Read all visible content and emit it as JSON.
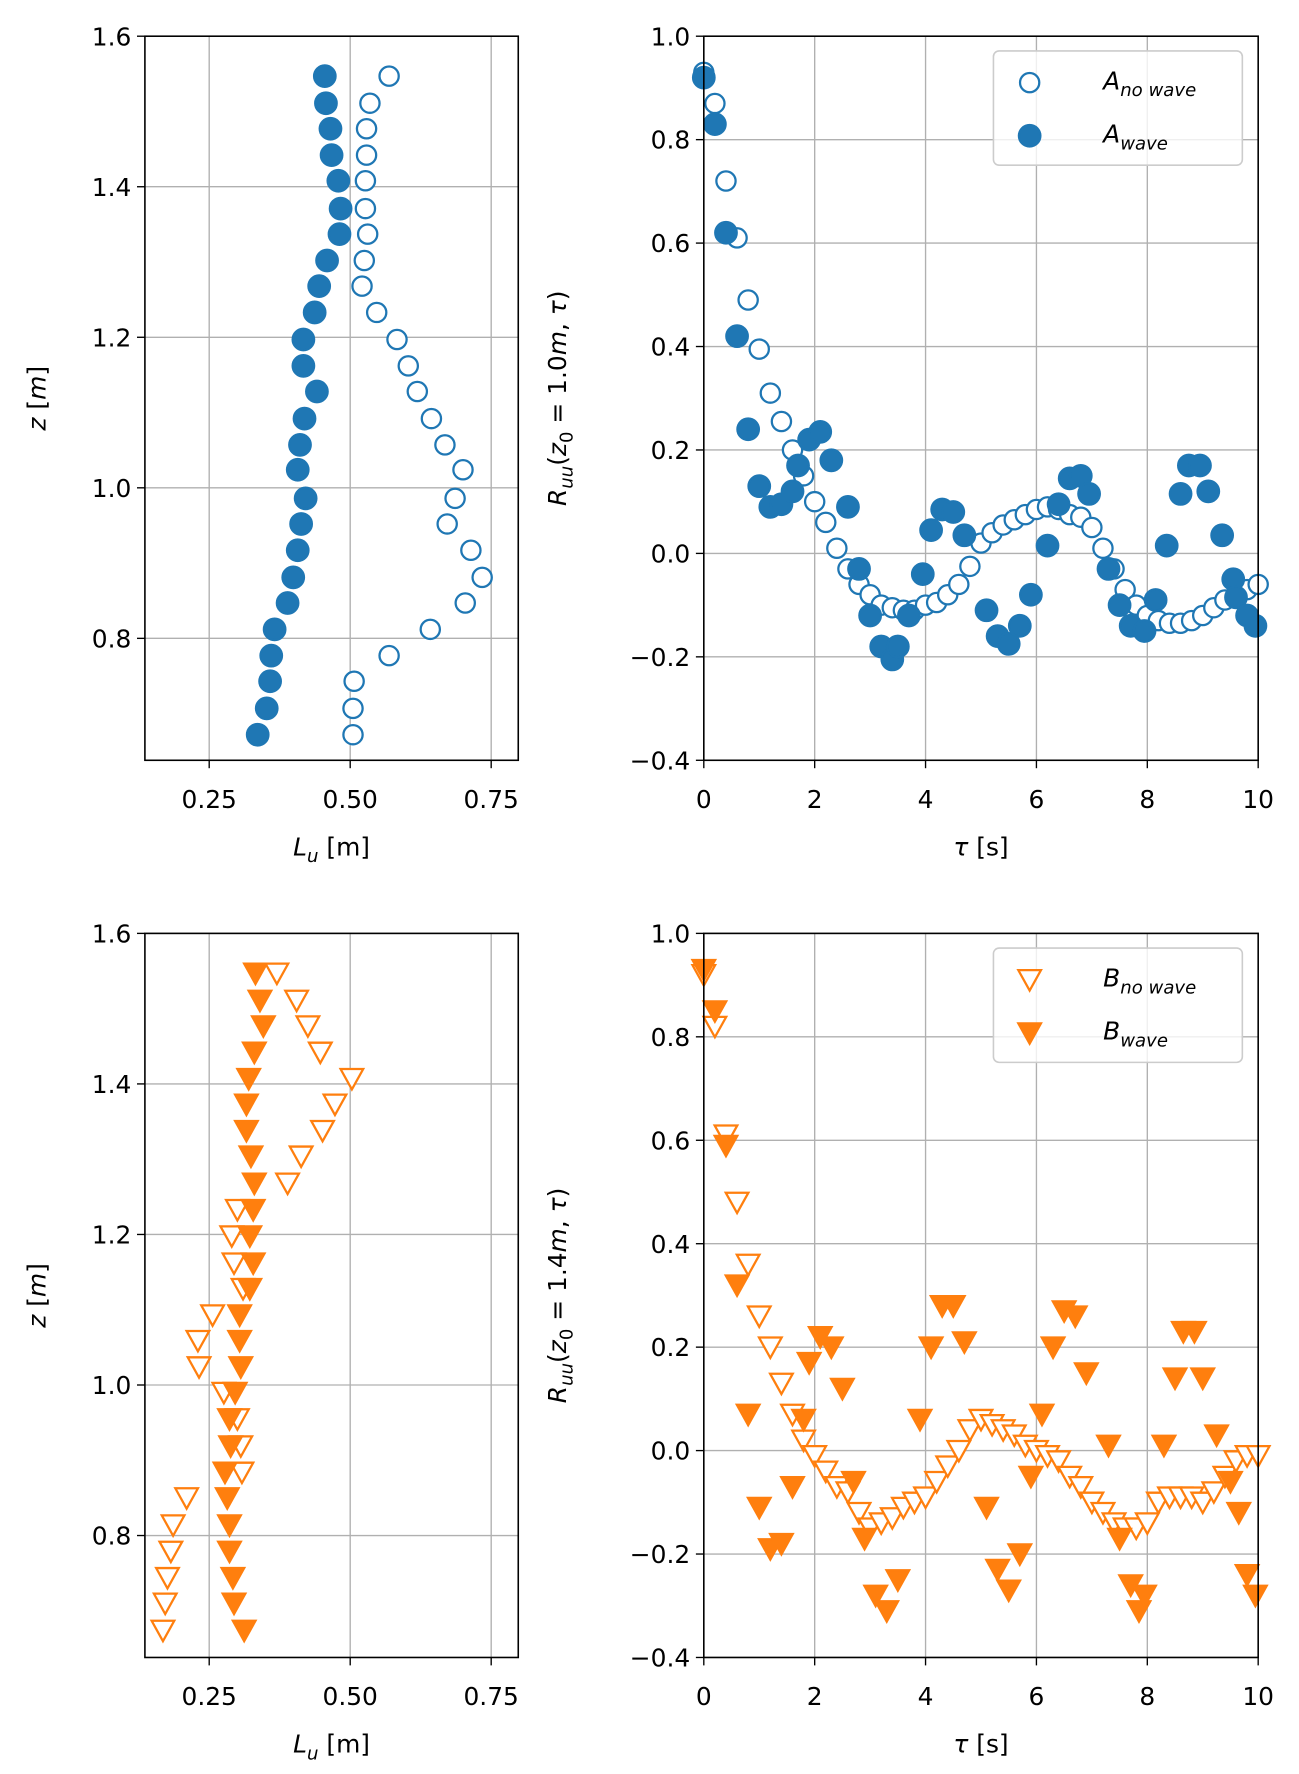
{
  "chart_data": [
    {
      "type": "scatter",
      "grid": true,
      "xlabel": [
        {
          "text": "L",
          "italic": true
        },
        {
          "text": "u",
          "italic": true,
          "sub": true
        },
        {
          "text": " [m]"
        }
      ],
      "ylabel": [
        {
          "text": "z",
          "italic": true
        },
        {
          "text": " ["
        },
        {
          "text": "m",
          "italic": true
        },
        {
          "text": "]"
        }
      ],
      "xlim": [
        0.136,
        0.798
      ],
      "ylim": [
        0.638,
        1.6
      ],
      "xticks": [
        {
          "value": 0.25,
          "label": "0.25"
        },
        {
          "value": 0.5,
          "label": "0.50"
        },
        {
          "value": 0.75,
          "label": "0.75"
        }
      ],
      "yticks": [
        0.8,
        {
          "value": 1.0,
          "label": "1.0"
        },
        1.2,
        1.4,
        1.6
      ],
      "series": [
        {
          "marker": "circle",
          "filled": false,
          "color": "#1f77b4",
          "x": [
            0.569,
            0.535,
            0.529,
            0.529,
            0.527,
            0.527,
            0.531,
            0.525,
            0.521,
            0.547,
            0.583,
            0.603,
            0.619,
            0.644,
            0.668,
            0.7,
            0.686,
            0.672,
            0.714,
            0.734,
            0.704,
            0.642,
            0.569,
            0.507,
            0.505,
            0.505
          ],
          "values": [
            1.547,
            1.511,
            1.477,
            1.442,
            1.408,
            1.371,
            1.337,
            1.302,
            1.268,
            1.233,
            1.197,
            1.162,
            1.128,
            1.092,
            1.057,
            1.024,
            0.986,
            0.952,
            0.917,
            0.881,
            0.847,
            0.812,
            0.777,
            0.743,
            0.707,
            0.672
          ]
        },
        {
          "marker": "circle",
          "filled": true,
          "color": "#1f77b4",
          "x": [
            0.455,
            0.457,
            0.465,
            0.467,
            0.479,
            0.483,
            0.481,
            0.459,
            0.445,
            0.437,
            0.417,
            0.417,
            0.441,
            0.419,
            0.411,
            0.407,
            0.421,
            0.413,
            0.407,
            0.399,
            0.389,
            0.366,
            0.36,
            0.358,
            0.352,
            0.336
          ],
          "values": [
            1.547,
            1.511,
            1.477,
            1.442,
            1.408,
            1.371,
            1.337,
            1.302,
            1.268,
            1.233,
            1.197,
            1.162,
            1.128,
            1.092,
            1.057,
            1.024,
            0.986,
            0.952,
            0.917,
            0.881,
            0.847,
            0.812,
            0.777,
            0.743,
            0.707,
            0.672
          ]
        }
      ]
    },
    {
      "type": "scatter",
      "grid": true,
      "legend": "upper right",
      "xlabel": [
        {
          "text": "τ",
          "italic": true
        },
        {
          "text": " [s]"
        }
      ],
      "ylabel": [
        {
          "text": "R",
          "italic": true
        },
        {
          "text": "uu",
          "italic": true,
          "sub": true
        },
        {
          "text": "("
        },
        {
          "text": "z",
          "italic": true
        },
        {
          "text": "0",
          "sub": true
        },
        {
          "text": " = 1.0"
        },
        {
          "text": "m",
          "italic": true
        },
        {
          "text": ", "
        },
        {
          "text": "τ",
          "italic": true
        },
        {
          "text": ")"
        }
      ],
      "xlim": [
        0,
        10
      ],
      "ylim": [
        -0.4,
        1.0
      ],
      "xticks": [
        0,
        2,
        4,
        6,
        8,
        10
      ],
      "yticks": [
        {
          "value": -0.4,
          "label": "−0.4"
        },
        {
          "value": -0.2,
          "label": "−0.2"
        },
        {
          "value": 0.0,
          "label": "0.0"
        },
        0.2,
        0.4,
        0.6,
        0.8,
        {
          "value": 1.0,
          "label": "1.0"
        }
      ],
      "series": [
        {
          "name": [
            {
              "text": "A",
              "italic": true
            },
            {
              "text": "no wave",
              "italic": true,
              "sub": true
            }
          ],
          "marker": "circle",
          "filled": false,
          "color": "#1f77b4",
          "x": [
            0,
            0.2,
            0.4,
            0.6,
            0.8,
            1.0,
            1.2,
            1.4,
            1.6,
            1.8,
            2.0,
            2.2,
            2.4,
            2.6,
            2.8,
            3.0,
            3.2,
            3.4,
            3.6,
            3.8,
            4.0,
            4.2,
            4.4,
            4.6,
            4.8,
            5.0,
            5.2,
            5.4,
            5.6,
            5.8,
            6.0,
            6.2,
            6.4,
            6.6,
            6.8,
            7.0,
            7.2,
            7.4,
            7.6,
            7.8,
            8.0,
            8.2,
            8.4,
            8.6,
            8.8,
            9.0,
            9.2,
            9.4,
            9.6,
            9.8,
            10.0
          ],
          "values": [
            0.93,
            0.87,
            0.72,
            0.61,
            0.49,
            0.395,
            0.31,
            0.255,
            0.2,
            0.15,
            0.1,
            0.06,
            0.01,
            -0.03,
            -0.06,
            -0.08,
            -0.1,
            -0.105,
            -0.11,
            -0.11,
            -0.1,
            -0.095,
            -0.08,
            -0.06,
            -0.025,
            0.02,
            0.04,
            0.055,
            0.065,
            0.075,
            0.085,
            0.09,
            0.085,
            0.075,
            0.07,
            0.05,
            0.01,
            -0.03,
            -0.07,
            -0.1,
            -0.12,
            -0.13,
            -0.135,
            -0.135,
            -0.13,
            -0.12,
            -0.105,
            -0.09,
            -0.08,
            -0.07,
            -0.06
          ]
        },
        {
          "name": [
            {
              "text": "A",
              "italic": true
            },
            {
              "text": "wave",
              "italic": true,
              "sub": true
            }
          ],
          "marker": "circle",
          "filled": true,
          "color": "#1f77b4",
          "x": [
            0,
            0.2,
            0.4,
            0.6,
            0.8,
            1.0,
            1.2,
            1.4,
            1.6,
            1.7,
            1.9,
            2.1,
            2.3,
            2.6,
            2.8,
            3.0,
            3.2,
            3.4,
            3.5,
            3.7,
            3.95,
            4.1,
            4.3,
            4.5,
            4.7,
            5.1,
            5.3,
            5.5,
            5.7,
            5.9,
            6.2,
            6.4,
            6.6,
            6.8,
            6.95,
            7.3,
            7.5,
            7.7,
            7.95,
            8.15,
            8.35,
            8.6,
            8.75,
            8.95,
            9.1,
            9.35,
            9.55,
            9.6,
            9.8,
            9.95
          ],
          "values": [
            0.92,
            0.83,
            0.62,
            0.42,
            0.24,
            0.13,
            0.09,
            0.095,
            0.12,
            0.17,
            0.22,
            0.235,
            0.18,
            0.09,
            -0.03,
            -0.12,
            -0.18,
            -0.205,
            -0.18,
            -0.12,
            -0.04,
            0.045,
            0.085,
            0.08,
            0.035,
            -0.11,
            -0.16,
            -0.175,
            -0.14,
            -0.08,
            0.015,
            0.095,
            0.145,
            0.15,
            0.115,
            -0.03,
            -0.1,
            -0.14,
            -0.15,
            -0.09,
            0.015,
            0.115,
            0.17,
            0.17,
            0.12,
            0.035,
            -0.05,
            -0.085,
            -0.12,
            -0.14
          ]
        }
      ]
    },
    {
      "type": "scatter",
      "grid": true,
      "xlabel": [
        {
          "text": "L",
          "italic": true
        },
        {
          "text": "u",
          "italic": true,
          "sub": true
        },
        {
          "text": " [m]"
        }
      ],
      "ylabel": [
        {
          "text": "z",
          "italic": true
        },
        {
          "text": " ["
        },
        {
          "text": "m",
          "italic": true
        },
        {
          "text": "]"
        }
      ],
      "xlim": [
        0.136,
        0.798
      ],
      "ylim": [
        0.638,
        1.6
      ],
      "xticks": [
        {
          "value": 0.25,
          "label": "0.25"
        },
        {
          "value": 0.5,
          "label": "0.50"
        },
        {
          "value": 0.75,
          "label": "0.75"
        }
      ],
      "yticks": [
        0.8,
        {
          "value": 1.0,
          "label": "1.0"
        },
        1.2,
        1.4,
        1.6
      ],
      "series": [
        {
          "marker": "triangle",
          "filled": false,
          "color": "#ff7f0e",
          "x": [
            0.37,
            0.405,
            0.425,
            0.447,
            0.503,
            0.473,
            0.451,
            0.413,
            0.389,
            0.3,
            0.29,
            0.294,
            0.31,
            0.256,
            0.23,
            0.232,
            0.276,
            0.3,
            0.306,
            0.308,
            0.21,
            0.186,
            0.182,
            0.176,
            0.172,
            0.168
          ],
          "values": [
            1.547,
            1.511,
            1.477,
            1.442,
            1.407,
            1.373,
            1.338,
            1.304,
            1.268,
            1.233,
            1.198,
            1.162,
            1.128,
            1.093,
            1.059,
            1.024,
            0.99,
            0.955,
            0.919,
            0.884,
            0.85,
            0.814,
            0.779,
            0.744,
            0.71,
            0.674
          ]
        },
        {
          "marker": "triangle",
          "filled": true,
          "color": "#ff7f0e",
          "x": [
            0.332,
            0.34,
            0.346,
            0.33,
            0.32,
            0.316,
            0.316,
            0.324,
            0.33,
            0.328,
            0.322,
            0.328,
            0.322,
            0.304,
            0.304,
            0.306,
            0.296,
            0.286,
            0.288,
            0.278,
            0.282,
            0.286,
            0.286,
            0.292,
            0.294,
            0.312
          ],
          "values": [
            1.547,
            1.511,
            1.477,
            1.442,
            1.407,
            1.373,
            1.338,
            1.304,
            1.268,
            1.233,
            1.198,
            1.162,
            1.128,
            1.093,
            1.059,
            1.024,
            0.99,
            0.955,
            0.919,
            0.884,
            0.85,
            0.814,
            0.779,
            0.744,
            0.71,
            0.674
          ]
        }
      ]
    },
    {
      "type": "scatter",
      "grid": true,
      "legend": "upper right",
      "xlabel": [
        {
          "text": "τ",
          "italic": true
        },
        {
          "text": " [s]"
        }
      ],
      "ylabel": [
        {
          "text": "R",
          "italic": true
        },
        {
          "text": "uu",
          "italic": true,
          "sub": true
        },
        {
          "text": "("
        },
        {
          "text": "z",
          "italic": true
        },
        {
          "text": "0",
          "sub": true
        },
        {
          "text": " = 1.4"
        },
        {
          "text": "m",
          "italic": true
        },
        {
          "text": ", "
        },
        {
          "text": "τ",
          "italic": true
        },
        {
          "text": ")"
        }
      ],
      "xlim": [
        0,
        10
      ],
      "ylim": [
        -0.4,
        1.0
      ],
      "xticks": [
        0,
        2,
        4,
        6,
        8,
        10
      ],
      "yticks": [
        {
          "value": -0.4,
          "label": "−0.4"
        },
        {
          "value": -0.2,
          "label": "−0.2"
        },
        {
          "value": 0.0,
          "label": "0.0"
        },
        0.2,
        0.4,
        0.6,
        0.8,
        {
          "value": 1.0,
          "label": "1.0"
        }
      ],
      "series": [
        {
          "name": [
            {
              "text": "B",
              "italic": true
            },
            {
              "text": "no wave",
              "italic": true,
              "sub": true
            }
          ],
          "marker": "triangle",
          "filled": false,
          "color": "#ff7f0e",
          "x": [
            0,
            0.2,
            0.4,
            0.6,
            0.8,
            1.0,
            1.2,
            1.4,
            1.6,
            1.8,
            2.0,
            2.2,
            2.4,
            2.6,
            2.8,
            3.0,
            3.2,
            3.4,
            3.6,
            3.8,
            4.0,
            4.2,
            4.4,
            4.6,
            4.8,
            5.0,
            5.2,
            5.4,
            5.6,
            5.8,
            6.0,
            6.2,
            6.4,
            6.6,
            6.8,
            7.0,
            7.2,
            7.4,
            7.6,
            7.8,
            8.0,
            8.2,
            8.4,
            8.6,
            8.8,
            9.0,
            9.2,
            9.4,
            9.6,
            9.8,
            10.0
          ],
          "values": [
            0.92,
            0.82,
            0.61,
            0.48,
            0.36,
            0.26,
            0.2,
            0.13,
            0.07,
            0.02,
            -0.01,
            -0.04,
            -0.07,
            -0.08,
            -0.12,
            -0.15,
            -0.14,
            -0.13,
            -0.11,
            -0.1,
            -0.09,
            -0.06,
            -0.03,
            0.0,
            0.04,
            0.06,
            0.05,
            0.04,
            0.03,
            0.01,
            0.0,
            -0.01,
            -0.02,
            -0.05,
            -0.07,
            -0.1,
            -0.12,
            -0.14,
            -0.15,
            -0.15,
            -0.14,
            -0.1,
            -0.09,
            -0.09,
            -0.09,
            -0.1,
            -0.08,
            -0.05,
            -0.02,
            -0.01,
            -0.01
          ]
        },
        {
          "name": [
            {
              "text": "B",
              "italic": true
            },
            {
              "text": "wave",
              "italic": true,
              "sub": true
            }
          ],
          "marker": "triangle",
          "filled": true,
          "color": "#ff7f0e",
          "x": [
            0,
            0.2,
            0.4,
            0.6,
            0.8,
            1.0,
            1.2,
            1.4,
            1.6,
            1.8,
            1.9,
            2.1,
            2.3,
            2.5,
            2.7,
            2.9,
            3.1,
            3.3,
            3.5,
            3.9,
            4.1,
            4.3,
            4.5,
            4.7,
            5.1,
            5.3,
            5.5,
            5.7,
            5.9,
            6.1,
            6.3,
            6.5,
            6.7,
            6.9,
            7.3,
            7.5,
            7.7,
            7.85,
            7.95,
            8.3,
            8.5,
            8.65,
            8.85,
            9.0,
            9.25,
            9.5,
            9.65,
            9.8,
            9.95
          ],
          "values": [
            0.93,
            0.85,
            0.59,
            0.32,
            0.07,
            -0.11,
            -0.19,
            -0.18,
            -0.07,
            0.06,
            0.17,
            0.22,
            0.2,
            0.12,
            -0.06,
            -0.17,
            -0.28,
            -0.31,
            -0.25,
            0.06,
            0.2,
            0.28,
            0.28,
            0.21,
            -0.11,
            -0.23,
            -0.27,
            -0.2,
            -0.05,
            0.07,
            0.2,
            0.27,
            0.26,
            0.15,
            0.01,
            -0.17,
            -0.26,
            -0.31,
            -0.28,
            0.01,
            0.14,
            0.23,
            0.23,
            0.14,
            0.03,
            -0.06,
            -0.12,
            -0.24,
            -0.28
          ]
        }
      ]
    }
  ]
}
